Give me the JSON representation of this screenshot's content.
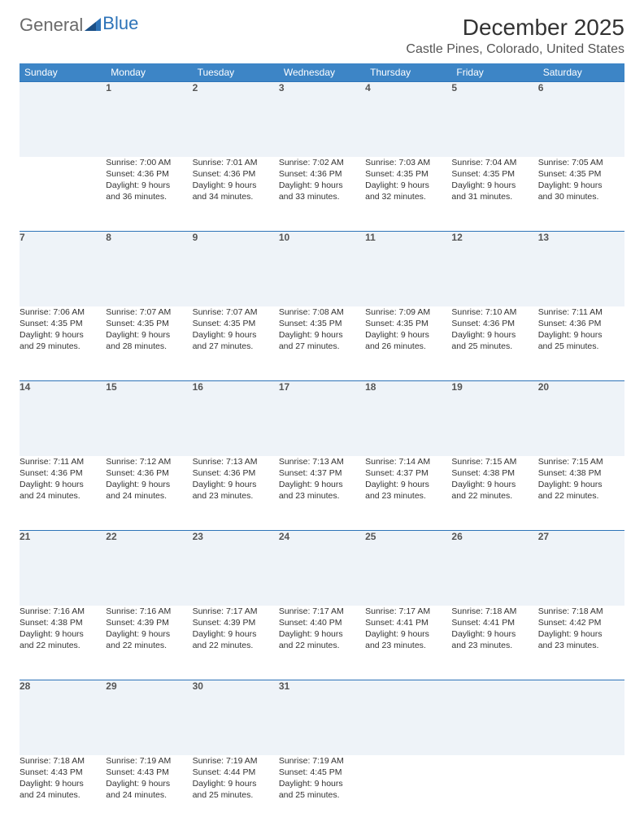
{
  "logo": {
    "word1": "General",
    "word2": "Blue"
  },
  "title": "December 2025",
  "location": "Castle Pines, Colorado, United States",
  "colors": {
    "header_bg": "#3d85c6",
    "header_text": "#ffffff",
    "daynum_bg": "#eef3f8",
    "row_border": "#2d73b8",
    "logo_gray": "#6a6a6a",
    "logo_blue": "#2d73b8"
  },
  "day_names": [
    "Sunday",
    "Monday",
    "Tuesday",
    "Wednesday",
    "Thursday",
    "Friday",
    "Saturday"
  ],
  "weeks": [
    [
      null,
      {
        "n": "1",
        "sr": "Sunrise: 7:00 AM",
        "ss": "Sunset: 4:36 PM",
        "dl1": "Daylight: 9 hours",
        "dl2": "and 36 minutes."
      },
      {
        "n": "2",
        "sr": "Sunrise: 7:01 AM",
        "ss": "Sunset: 4:36 PM",
        "dl1": "Daylight: 9 hours",
        "dl2": "and 34 minutes."
      },
      {
        "n": "3",
        "sr": "Sunrise: 7:02 AM",
        "ss": "Sunset: 4:36 PM",
        "dl1": "Daylight: 9 hours",
        "dl2": "and 33 minutes."
      },
      {
        "n": "4",
        "sr": "Sunrise: 7:03 AM",
        "ss": "Sunset: 4:35 PM",
        "dl1": "Daylight: 9 hours",
        "dl2": "and 32 minutes."
      },
      {
        "n": "5",
        "sr": "Sunrise: 7:04 AM",
        "ss": "Sunset: 4:35 PM",
        "dl1": "Daylight: 9 hours",
        "dl2": "and 31 minutes."
      },
      {
        "n": "6",
        "sr": "Sunrise: 7:05 AM",
        "ss": "Sunset: 4:35 PM",
        "dl1": "Daylight: 9 hours",
        "dl2": "and 30 minutes."
      }
    ],
    [
      {
        "n": "7",
        "sr": "Sunrise: 7:06 AM",
        "ss": "Sunset: 4:35 PM",
        "dl1": "Daylight: 9 hours",
        "dl2": "and 29 minutes."
      },
      {
        "n": "8",
        "sr": "Sunrise: 7:07 AM",
        "ss": "Sunset: 4:35 PM",
        "dl1": "Daylight: 9 hours",
        "dl2": "and 28 minutes."
      },
      {
        "n": "9",
        "sr": "Sunrise: 7:07 AM",
        "ss": "Sunset: 4:35 PM",
        "dl1": "Daylight: 9 hours",
        "dl2": "and 27 minutes."
      },
      {
        "n": "10",
        "sr": "Sunrise: 7:08 AM",
        "ss": "Sunset: 4:35 PM",
        "dl1": "Daylight: 9 hours",
        "dl2": "and 27 minutes."
      },
      {
        "n": "11",
        "sr": "Sunrise: 7:09 AM",
        "ss": "Sunset: 4:35 PM",
        "dl1": "Daylight: 9 hours",
        "dl2": "and 26 minutes."
      },
      {
        "n": "12",
        "sr": "Sunrise: 7:10 AM",
        "ss": "Sunset: 4:36 PM",
        "dl1": "Daylight: 9 hours",
        "dl2": "and 25 minutes."
      },
      {
        "n": "13",
        "sr": "Sunrise: 7:11 AM",
        "ss": "Sunset: 4:36 PM",
        "dl1": "Daylight: 9 hours",
        "dl2": "and 25 minutes."
      }
    ],
    [
      {
        "n": "14",
        "sr": "Sunrise: 7:11 AM",
        "ss": "Sunset: 4:36 PM",
        "dl1": "Daylight: 9 hours",
        "dl2": "and 24 minutes."
      },
      {
        "n": "15",
        "sr": "Sunrise: 7:12 AM",
        "ss": "Sunset: 4:36 PM",
        "dl1": "Daylight: 9 hours",
        "dl2": "and 24 minutes."
      },
      {
        "n": "16",
        "sr": "Sunrise: 7:13 AM",
        "ss": "Sunset: 4:36 PM",
        "dl1": "Daylight: 9 hours",
        "dl2": "and 23 minutes."
      },
      {
        "n": "17",
        "sr": "Sunrise: 7:13 AM",
        "ss": "Sunset: 4:37 PM",
        "dl1": "Daylight: 9 hours",
        "dl2": "and 23 minutes."
      },
      {
        "n": "18",
        "sr": "Sunrise: 7:14 AM",
        "ss": "Sunset: 4:37 PM",
        "dl1": "Daylight: 9 hours",
        "dl2": "and 23 minutes."
      },
      {
        "n": "19",
        "sr": "Sunrise: 7:15 AM",
        "ss": "Sunset: 4:38 PM",
        "dl1": "Daylight: 9 hours",
        "dl2": "and 22 minutes."
      },
      {
        "n": "20",
        "sr": "Sunrise: 7:15 AM",
        "ss": "Sunset: 4:38 PM",
        "dl1": "Daylight: 9 hours",
        "dl2": "and 22 minutes."
      }
    ],
    [
      {
        "n": "21",
        "sr": "Sunrise: 7:16 AM",
        "ss": "Sunset: 4:38 PM",
        "dl1": "Daylight: 9 hours",
        "dl2": "and 22 minutes."
      },
      {
        "n": "22",
        "sr": "Sunrise: 7:16 AM",
        "ss": "Sunset: 4:39 PM",
        "dl1": "Daylight: 9 hours",
        "dl2": "and 22 minutes."
      },
      {
        "n": "23",
        "sr": "Sunrise: 7:17 AM",
        "ss": "Sunset: 4:39 PM",
        "dl1": "Daylight: 9 hours",
        "dl2": "and 22 minutes."
      },
      {
        "n": "24",
        "sr": "Sunrise: 7:17 AM",
        "ss": "Sunset: 4:40 PM",
        "dl1": "Daylight: 9 hours",
        "dl2": "and 22 minutes."
      },
      {
        "n": "25",
        "sr": "Sunrise: 7:17 AM",
        "ss": "Sunset: 4:41 PM",
        "dl1": "Daylight: 9 hours",
        "dl2": "and 23 minutes."
      },
      {
        "n": "26",
        "sr": "Sunrise: 7:18 AM",
        "ss": "Sunset: 4:41 PM",
        "dl1": "Daylight: 9 hours",
        "dl2": "and 23 minutes."
      },
      {
        "n": "27",
        "sr": "Sunrise: 7:18 AM",
        "ss": "Sunset: 4:42 PM",
        "dl1": "Daylight: 9 hours",
        "dl2": "and 23 minutes."
      }
    ],
    [
      {
        "n": "28",
        "sr": "Sunrise: 7:18 AM",
        "ss": "Sunset: 4:43 PM",
        "dl1": "Daylight: 9 hours",
        "dl2": "and 24 minutes."
      },
      {
        "n": "29",
        "sr": "Sunrise: 7:19 AM",
        "ss": "Sunset: 4:43 PM",
        "dl1": "Daylight: 9 hours",
        "dl2": "and 24 minutes."
      },
      {
        "n": "30",
        "sr": "Sunrise: 7:19 AM",
        "ss": "Sunset: 4:44 PM",
        "dl1": "Daylight: 9 hours",
        "dl2": "and 25 minutes."
      },
      {
        "n": "31",
        "sr": "Sunrise: 7:19 AM",
        "ss": "Sunset: 4:45 PM",
        "dl1": "Daylight: 9 hours",
        "dl2": "and 25 minutes."
      },
      null,
      null,
      null
    ]
  ]
}
